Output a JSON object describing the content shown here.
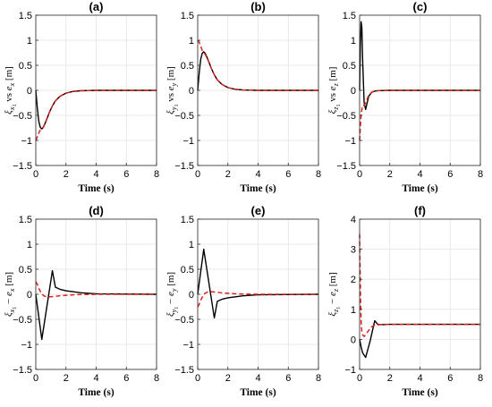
{
  "chart_data": [
    {
      "type": "line",
      "title": "(a)",
      "xlabel": "Time (s)",
      "ylabel": "ξ_{x_1} vs e_x [m]",
      "ylabel_parts": {
        "var": "ξ",
        "sub": "x",
        "subsub": "1",
        "mid": " vs ",
        "err": "e",
        "errsub": "x",
        "unit": " [m]"
      },
      "xlim": [
        0,
        8
      ],
      "ylim": [
        -1.5,
        1.5
      ],
      "xticks": [
        0,
        2,
        4,
        6,
        8
      ],
      "yticks": [
        -1.5,
        -1,
        -0.5,
        0,
        0.5,
        1,
        1.5
      ],
      "grid": true,
      "series": [
        {
          "color": "#000000",
          "dash": "solid",
          "x": [
            0,
            0.1,
            0.2,
            0.3,
            0.4,
            0.5,
            0.7,
            0.9,
            1.1,
            1.3,
            1.6,
            2.0,
            2.5,
            3.0,
            4.0,
            5.0,
            6.0,
            8.0
          ],
          "y": [
            0,
            -0.35,
            -0.62,
            -0.74,
            -0.77,
            -0.74,
            -0.6,
            -0.44,
            -0.31,
            -0.21,
            -0.12,
            -0.055,
            -0.02,
            -0.007,
            0,
            0,
            0,
            0
          ]
        },
        {
          "color": "#e0201b",
          "dash": "dash",
          "x": [
            0,
            0.1,
            0.2,
            0.3,
            0.4,
            0.5,
            0.7,
            0.9,
            1.1,
            1.3,
            1.6,
            2.0,
            2.5,
            3.0,
            4.0,
            5.0,
            6.0,
            8.0
          ],
          "y": [
            -1.0,
            -0.93,
            -0.85,
            -0.79,
            -0.76,
            -0.73,
            -0.59,
            -0.44,
            -0.31,
            -0.21,
            -0.12,
            -0.055,
            -0.02,
            -0.007,
            0,
            0,
            0,
            0
          ]
        }
      ]
    },
    {
      "type": "line",
      "title": "(b)",
      "xlabel": "Time (s)",
      "ylabel": "ξ_{y_1} vs e_y [m]",
      "ylabel_parts": {
        "var": "ξ",
        "sub": "y",
        "subsub": "1",
        "mid": " vs ",
        "err": "e",
        "errsub": "y",
        "unit": " [m]"
      },
      "xlim": [
        0,
        8
      ],
      "ylim": [
        -1.5,
        1.5
      ],
      "xticks": [
        0,
        2,
        4,
        6,
        8
      ],
      "yticks": [
        -1.5,
        -1,
        -0.5,
        0,
        0.5,
        1,
        1.5
      ],
      "grid": true,
      "series": [
        {
          "color": "#000000",
          "dash": "solid",
          "x": [
            0,
            0.1,
            0.2,
            0.3,
            0.4,
            0.5,
            0.7,
            0.9,
            1.1,
            1.3,
            1.6,
            2.0,
            2.5,
            3.0,
            4.0,
            5.0,
            6.0,
            8.0
          ],
          "y": [
            0,
            0.35,
            0.62,
            0.74,
            0.77,
            0.74,
            0.6,
            0.44,
            0.31,
            0.21,
            0.12,
            0.055,
            0.02,
            0.007,
            0,
            0,
            0,
            0
          ]
        },
        {
          "color": "#e0201b",
          "dash": "dash",
          "x": [
            0,
            0.1,
            0.2,
            0.3,
            0.4,
            0.5,
            0.7,
            0.9,
            1.1,
            1.3,
            1.6,
            2.0,
            2.5,
            3.0,
            4.0,
            5.0,
            6.0,
            8.0
          ],
          "y": [
            1.0,
            0.96,
            0.88,
            0.8,
            0.75,
            0.72,
            0.59,
            0.44,
            0.31,
            0.21,
            0.12,
            0.055,
            0.02,
            0.007,
            0,
            0,
            0,
            0
          ]
        }
      ]
    },
    {
      "type": "line",
      "title": "(c)",
      "xlabel": "Time (s)",
      "ylabel": "ξ_{z_1} vs e_z [m]",
      "ylabel_parts": {
        "var": "ξ",
        "sub": "z",
        "subsub": "1",
        "mid": " vs ",
        "err": "e",
        "errsub": "z",
        "unit": " [m]"
      },
      "xlim": [
        0,
        8
      ],
      "ylim": [
        -1.5,
        1.5
      ],
      "xticks": [
        0,
        2,
        4,
        6,
        8
      ],
      "yticks": [
        -1.5,
        -1,
        -0.5,
        0,
        0.5,
        1,
        1.5
      ],
      "grid": true,
      "series": [
        {
          "color": "#000000",
          "dash": "solid",
          "x": [
            0,
            0.05,
            0.1,
            0.15,
            0.2,
            0.3,
            0.4,
            0.5,
            0.6,
            0.8,
            1.0,
            1.3,
            2.0,
            3.0,
            8.0
          ],
          "y": [
            0,
            0.9,
            1.37,
            1.25,
            0.6,
            -0.25,
            -0.38,
            -0.25,
            -0.12,
            -0.04,
            -0.015,
            -0.005,
            0,
            0,
            0
          ]
        },
        {
          "color": "#e0201b",
          "dash": "dash",
          "x": [
            0,
            0.05,
            0.1,
            0.15,
            0.2,
            0.3,
            0.4,
            0.5,
            0.6,
            0.8,
            1.0,
            1.3,
            2.0,
            3.0,
            8.0
          ],
          "y": [
            -1.0,
            -0.72,
            -0.5,
            -0.38,
            -0.3,
            -0.3,
            -0.25,
            -0.17,
            -0.1,
            -0.035,
            -0.012,
            -0.004,
            0,
            0,
            0
          ]
        }
      ]
    },
    {
      "type": "line",
      "title": "(d)",
      "xlabel": "Time (s)",
      "ylabel": "ξ_{x_1} − e_x [m]",
      "ylabel_parts": {
        "var": "ξ",
        "sub": "x",
        "subsub": "1",
        "mid": " − ",
        "err": "e",
        "errsub": "x",
        "unit": " [m]"
      },
      "xlim": [
        0,
        8
      ],
      "ylim": [
        -1.5,
        1.5
      ],
      "xticks": [
        0,
        2,
        4,
        6,
        8
      ],
      "yticks": [
        -1.5,
        -1,
        -0.5,
        0,
        0.5,
        1,
        1.5
      ],
      "grid": true,
      "series": [
        {
          "color": "#000000",
          "dash": "solid",
          "x": [
            0,
            0.4,
            1.1,
            1.3,
            1.6,
            2.0,
            3.0,
            4.0,
            8.0
          ],
          "y": [
            0,
            -0.9,
            0.47,
            0.14,
            0.1,
            0.07,
            0.03,
            0.01,
            0
          ]
        },
        {
          "color": "#e0201b",
          "dash": "dash",
          "x": [
            0,
            0.1,
            0.2,
            0.3,
            0.4,
            0.6,
            0.8,
            1.0,
            1.3,
            1.6,
            2.0,
            2.5,
            3.0,
            4.0,
            8.0
          ],
          "y": [
            0.25,
            0.2,
            0.12,
            0.06,
            0.0,
            -0.04,
            -0.05,
            -0.05,
            -0.04,
            -0.03,
            -0.02,
            -0.01,
            -0.005,
            0,
            0
          ]
        }
      ]
    },
    {
      "type": "line",
      "title": "(e)",
      "xlabel": "Time (s)",
      "ylabel": "ξ_{y_1} − e_y [m]",
      "ylabel_parts": {
        "var": "ξ",
        "sub": "y",
        "subsub": "1",
        "mid": " − ",
        "err": "e",
        "errsub": "y",
        "unit": " [m]"
      },
      "xlim": [
        0,
        8
      ],
      "ylim": [
        -1.5,
        1.5
      ],
      "xticks": [
        0,
        2,
        4,
        6,
        8
      ],
      "yticks": [
        -1.5,
        -1,
        -0.5,
        0,
        0.5,
        1,
        1.5
      ],
      "grid": true,
      "series": [
        {
          "color": "#000000",
          "dash": "solid",
          "x": [
            0,
            0.4,
            1.1,
            1.3,
            1.6,
            2.0,
            3.0,
            4.0,
            8.0
          ],
          "y": [
            0,
            0.9,
            -0.47,
            -0.14,
            -0.1,
            -0.07,
            -0.03,
            -0.01,
            0
          ]
        },
        {
          "color": "#e0201b",
          "dash": "dash",
          "x": [
            0,
            0.1,
            0.2,
            0.3,
            0.4,
            0.6,
            0.8,
            1.0,
            1.3,
            1.6,
            2.0,
            2.5,
            3.0,
            4.0,
            8.0
          ],
          "y": [
            -0.25,
            -0.2,
            -0.12,
            -0.06,
            0.0,
            0.04,
            0.05,
            0.05,
            0.04,
            0.03,
            0.02,
            0.01,
            0.005,
            0,
            0
          ]
        }
      ]
    },
    {
      "type": "line",
      "title": "(f)",
      "xlabel": "Time (s)",
      "ylabel": "ξ_{z_1} − e_z [m]",
      "ylabel_parts": {
        "var": "ξ",
        "sub": "z",
        "subsub": "1",
        "mid": " − ",
        "err": "e",
        "errsub": "z",
        "unit": " [m]"
      },
      "xlim": [
        0,
        8
      ],
      "ylim": [
        -1,
        4
      ],
      "xticks": [
        0,
        2,
        4,
        6,
        8
      ],
      "yticks": [
        -1,
        0,
        1,
        2,
        3,
        4
      ],
      "grid": true,
      "series": [
        {
          "color": "#000000",
          "dash": "solid",
          "x": [
            0,
            0.1,
            0.2,
            0.4,
            0.7,
            1.0,
            1.2,
            1.5,
            2.0,
            3.0,
            8.0
          ],
          "y": [
            0,
            -0.25,
            -0.45,
            -0.6,
            -0.05,
            0.62,
            0.5,
            0.49,
            0.5,
            0.5,
            0.5
          ]
        },
        {
          "color": "#e0201b",
          "dash": "dash",
          "x": [
            0,
            0.03,
            0.06,
            0.1,
            0.15,
            0.2,
            0.3,
            0.4,
            0.6,
            0.8,
            1.0,
            1.5,
            2.0,
            3.0,
            8.0
          ],
          "y": [
            3.5,
            2.4,
            1.4,
            0.6,
            0.25,
            0.15,
            0.1,
            0.15,
            0.3,
            0.42,
            0.47,
            0.5,
            0.5,
            0.5,
            0.5
          ]
        }
      ]
    }
  ]
}
